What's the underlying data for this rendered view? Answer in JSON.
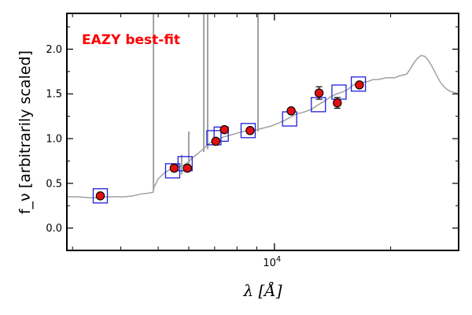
{
  "chart_data": {
    "type": "scatter",
    "title": "",
    "annotation": "EAZY best-fit",
    "annotation_color": "#ff0000",
    "xlabel": "λ [Å]",
    "ylabel": "f_ν [arbitrarily scaled]",
    "xscale": "log",
    "xlim": [
      2900,
      30000
    ],
    "ylim": [
      -0.25,
      2.4
    ],
    "yticks": [
      0.0,
      0.5,
      1.0,
      1.5,
      2.0
    ],
    "ytick_labels": [
      "0.0",
      "0.5",
      "1.0",
      "1.5",
      "2.0"
    ],
    "xtick_label": "10^4",
    "xtick_value": 10000,
    "colors": {
      "model": "#a0a0a0",
      "photometry_face": "#e01010",
      "model_box": "#2020dd"
    },
    "series": [
      {
        "name": "EAZY best-fit template",
        "kind": "line",
        "x": [
          2900,
          3100,
          3300,
          3500,
          3700,
          3900,
          4100,
          4300,
          4500,
          4700,
          4850,
          4870,
          5000,
          5200,
          5400,
          5600,
          5800,
          6000,
          6100,
          6200,
          6400,
          6600,
          6800,
          7000,
          7200,
          7400,
          7700,
          8000,
          8300,
          8600,
          9000,
          9400,
          9800,
          10200,
          10600,
          11000,
          11500,
          12000,
          12500,
          13000,
          13500,
          14000,
          14500,
          15000,
          15500,
          16000,
          16500,
          17000,
          17500,
          18000,
          18500,
          19000,
          19500,
          20000,
          20500,
          21000,
          21500,
          22000,
          22500,
          23000,
          23500,
          24000,
          24500,
          25000,
          25500,
          26000,
          26500,
          27000,
          27500,
          28000,
          28500,
          29000,
          29500,
          30000
        ],
        "y": [
          0.35,
          0.35,
          0.34,
          0.34,
          0.35,
          0.35,
          0.35,
          0.36,
          0.38,
          0.39,
          0.4,
          0.45,
          0.55,
          0.62,
          0.66,
          0.68,
          0.7,
          0.74,
          0.78,
          0.8,
          0.85,
          0.9,
          0.95,
          0.98,
          1.0,
          1.02,
          1.04,
          1.06,
          1.08,
          1.09,
          1.1,
          1.12,
          1.14,
          1.17,
          1.2,
          1.24,
          1.28,
          1.3,
          1.33,
          1.38,
          1.42,
          1.47,
          1.5,
          1.52,
          1.55,
          1.6,
          1.62,
          1.63,
          1.64,
          1.66,
          1.66,
          1.67,
          1.68,
          1.68,
          1.68,
          1.7,
          1.71,
          1.72,
          1.78,
          1.85,
          1.9,
          1.93,
          1.92,
          1.88,
          1.82,
          1.75,
          1.68,
          1.62,
          1.58,
          1.55,
          1.53,
          1.52,
          1.51,
          1.5
        ]
      },
      {
        "name": "Emission lines",
        "kind": "lines",
        "lines": [
          {
            "x": 4861,
            "y0": 0.42,
            "y1": 2.4
          },
          {
            "x": 5750,
            "y0": 0.6,
            "y1": 0.82
          },
          {
            "x": 6000,
            "y0": 0.72,
            "y1": 1.08
          },
          {
            "x": 6563,
            "y0": 0.85,
            "y1": 2.4
          },
          {
            "x": 6716,
            "y0": 0.88,
            "y1": 2.4
          },
          {
            "x": 9069,
            "y0": 1.08,
            "y1": 2.4
          }
        ]
      },
      {
        "name": "Model photometry",
        "kind": "boxes",
        "x": [
          3540,
          5450,
          5870,
          6970,
          7280,
          8550,
          10950,
          13000,
          14700,
          16500
        ],
        "y": [
          0.36,
          0.64,
          0.72,
          1.01,
          1.05,
          1.09,
          1.22,
          1.38,
          1.52,
          1.61
        ]
      },
      {
        "name": "Observed photometry",
        "kind": "points_with_errors",
        "x": [
          3540,
          5500,
          5950,
          7050,
          7420,
          8650,
          11050,
          13050,
          14550,
          16600
        ],
        "y": [
          0.36,
          0.67,
          0.67,
          0.97,
          1.1,
          1.09,
          1.31,
          1.51,
          1.4,
          1.6
        ],
        "err": [
          0.02,
          0.02,
          0.02,
          0.03,
          0.02,
          0.03,
          0.03,
          0.07,
          0.06,
          0.03
        ]
      }
    ]
  }
}
